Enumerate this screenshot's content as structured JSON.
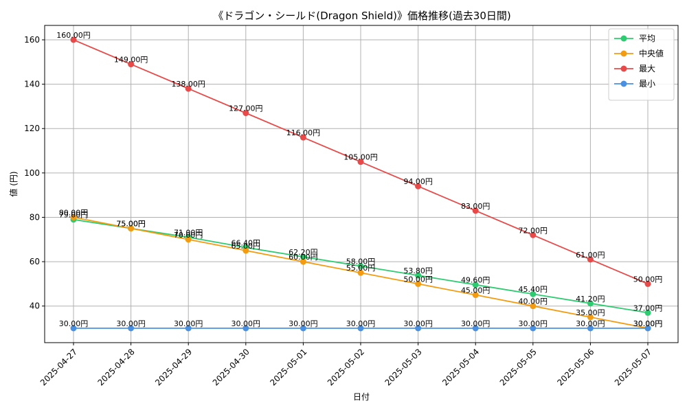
{
  "chart_data": {
    "type": "line",
    "title": "《ドラゴン・シールド(Dragon Shield)》価格推移(過去30日間)",
    "xlabel": "日付",
    "ylabel": "値 (円)",
    "categories": [
      "2025-04-27",
      "2025-04-28",
      "2025-04-29",
      "2025-04-30",
      "2025-05-01",
      "2025-05-02",
      "2025-05-03",
      "2025-05-04",
      "2025-05-05",
      "2025-05-06",
      "2025-05-07"
    ],
    "ylim": [
      23.5,
      166.5
    ],
    "yticks": [
      40,
      60,
      80,
      100,
      120,
      140,
      160
    ],
    "grid": true,
    "legend_position": "top-right",
    "value_suffix": "円",
    "series": [
      {
        "name": "平均",
        "color": "#2ecc71",
        "values": [
          79.0,
          75.0,
          71.0,
          66.4,
          62.2,
          58.0,
          53.8,
          49.6,
          45.4,
          41.2,
          37.0
        ]
      },
      {
        "name": "中央値",
        "color": "#f39c12",
        "values": [
          80.0,
          75.0,
          70.0,
          65.0,
          60.0,
          55.0,
          50.0,
          45.0,
          40.0,
          35.0,
          30.0
        ]
      },
      {
        "name": "最大",
        "color": "#e84a4a",
        "values": [
          160.0,
          149.0,
          138.0,
          127.0,
          116.0,
          105.0,
          94.0,
          83.0,
          72.0,
          61.0,
          50.0
        ]
      },
      {
        "name": "最小",
        "color": "#4a90e2",
        "values": [
          30.0,
          30.0,
          30.0,
          30.0,
          30.0,
          30.0,
          30.0,
          30.0,
          30.0,
          30.0,
          30.0
        ]
      }
    ]
  }
}
